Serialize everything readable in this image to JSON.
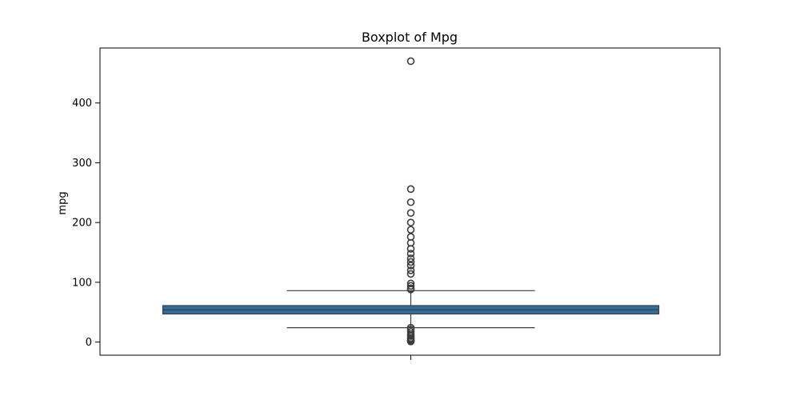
{
  "chart_data": {
    "type": "box",
    "title": "Boxplot of Mpg",
    "xlabel": "",
    "ylabel": "mpg",
    "ylim": [
      -22,
      492
    ],
    "yticks": [
      0,
      100,
      200,
      300,
      400
    ],
    "grid": false,
    "box": {
      "q1": 47,
      "median": 54,
      "q3": 61,
      "whisker_low": 24,
      "whisker_high": 86
    },
    "outliers": [
      470,
      256,
      234,
      216,
      200,
      188,
      176,
      166,
      156,
      148,
      140,
      134,
      128,
      120,
      114,
      98,
      94,
      90,
      88,
      24,
      21,
      17,
      13,
      10,
      7,
      5,
      3,
      2,
      1
    ],
    "colors": {
      "box_fill": "#2e6f9e",
      "line": "#3d3d3d",
      "axes": "#000000"
    }
  }
}
